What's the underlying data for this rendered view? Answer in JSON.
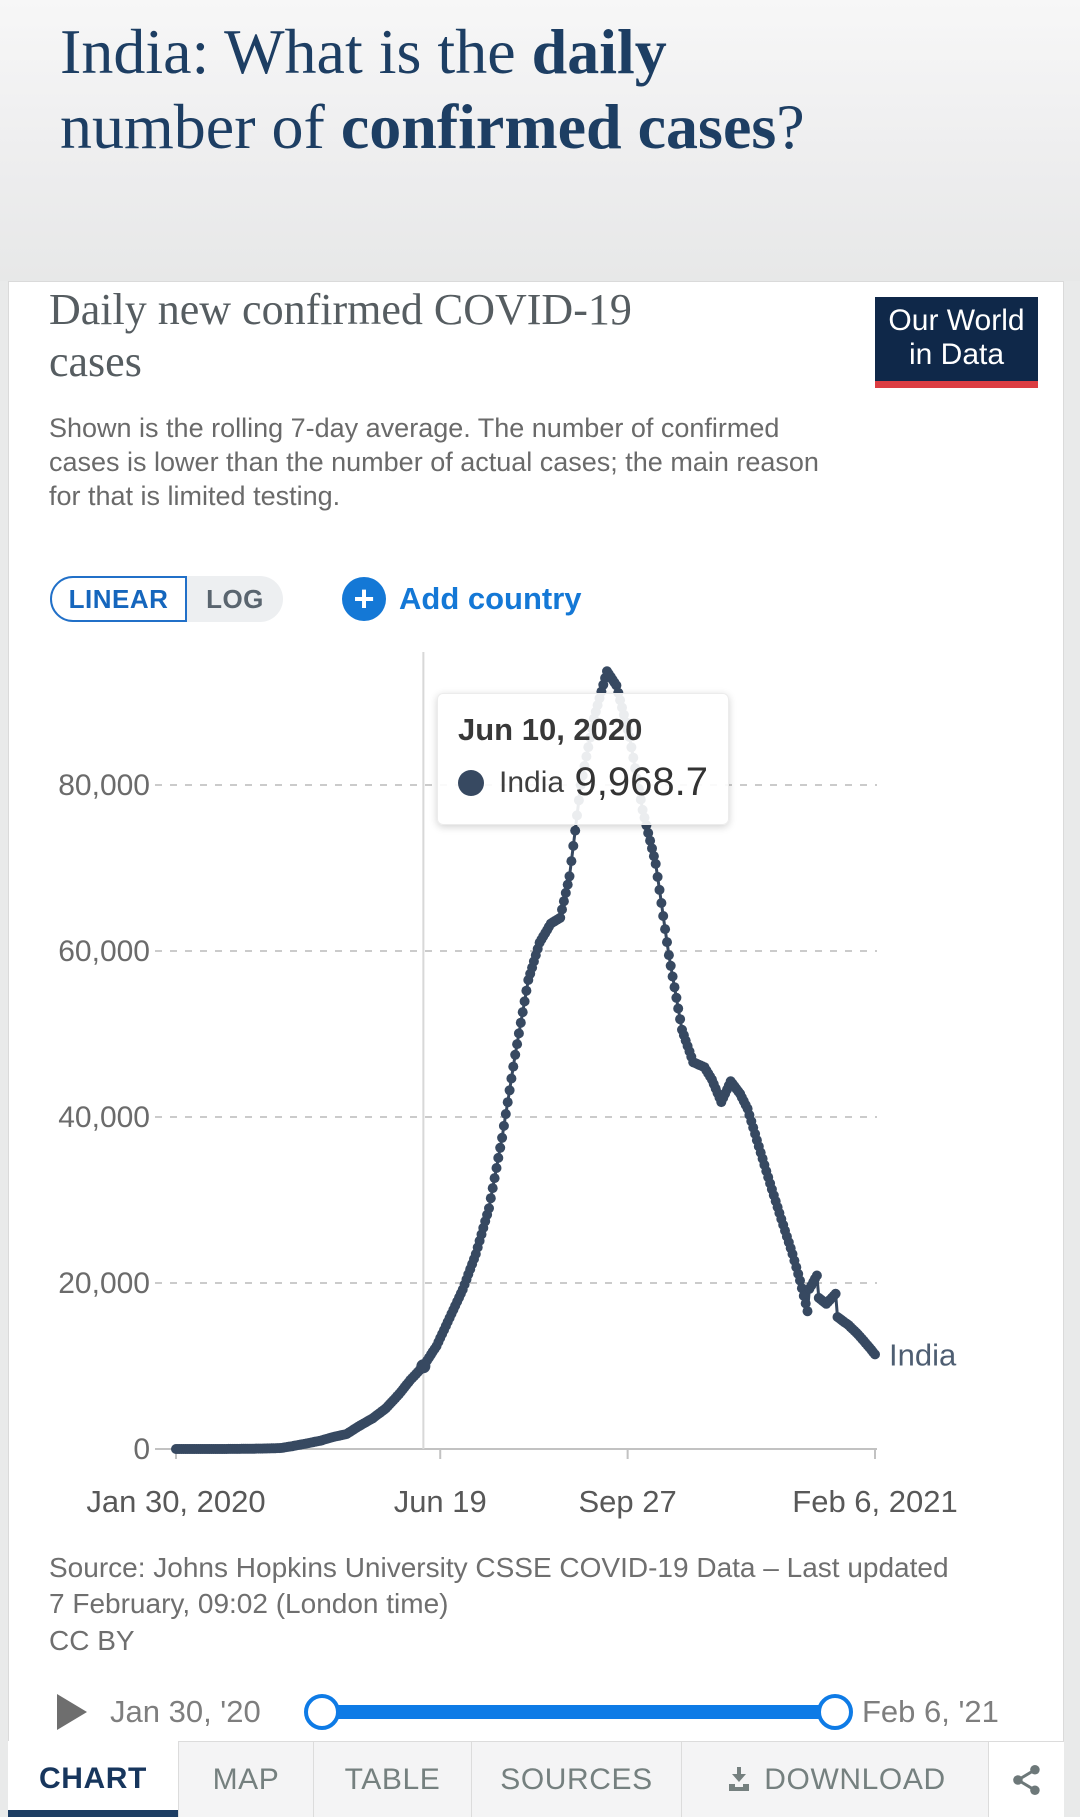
{
  "page_title": {
    "line1_normal": "India: What is the ",
    "line1_bold": "daily",
    "line2_normal": "number of ",
    "line2_bold": "confirmed cases",
    "line2_suffix": "?"
  },
  "chart_header": {
    "title_line1": "Daily new confirmed COVID-19",
    "title_line2": "cases",
    "logo_line1": "Our World",
    "logo_line2": "in Data",
    "subtitle_lines": [
      "Shown is the rolling 7-day average. The number of confirmed",
      "cases is lower than the number of actual cases; the main reason",
      "for that is limited testing."
    ]
  },
  "controls": {
    "linear_label": "LINEAR",
    "log_label": "LOG",
    "plus_glyph": "+",
    "add_country_label": "Add country"
  },
  "tooltip": {
    "date": "Jun 10, 2020",
    "series": "India",
    "value": "9,968.7"
  },
  "footer": {
    "source_line1": "Source: Johns Hopkins University CSSE COVID-19 Data – Last updated",
    "source_line2": "7 February, 09:02 (London time)",
    "license": "CC BY"
  },
  "timeline": {
    "start_label": "Jan 30, '20",
    "end_label": "Feb 6, '21"
  },
  "tabs": {
    "items": [
      {
        "label": "CHART",
        "active": true
      },
      {
        "label": "MAP",
        "active": false
      },
      {
        "label": "TABLE",
        "active": false
      },
      {
        "label": "SOURCES",
        "active": false
      },
      {
        "label": "DOWNLOAD",
        "active": false,
        "icon": "download-icon"
      }
    ],
    "share_icon": "share-icon"
  },
  "colors": {
    "accent_blue": "#1478d6",
    "slider_blue": "#0e7be6",
    "series_color": "#374961",
    "title_navy": "#1d3e63",
    "logo_navy": "#0f2849",
    "logo_red": "#dc3d42",
    "grid_gray": "#cbcbcb"
  },
  "chart_data": {
    "type": "line",
    "title": "Daily new confirmed COVID-19 cases",
    "entity": "India",
    "series_color": "#374961",
    "grid": true,
    "x_range": [
      "2020-01-30",
      "2021-02-06"
    ],
    "ylim": [
      0,
      95000
    ],
    "yticks": [
      {
        "v": 0,
        "label": "0"
      },
      {
        "v": 20000,
        "label": "20,000"
      },
      {
        "v": 40000,
        "label": "40,000"
      },
      {
        "v": 60000,
        "label": "60,000"
      },
      {
        "v": 80000,
        "label": "80,000"
      }
    ],
    "xticks": [
      {
        "date": "2020-01-30",
        "label": "Jan 30, 2020"
      },
      {
        "date": "2020-06-19",
        "label": "Jun 19"
      },
      {
        "date": "2020-09-27",
        "label": "Sep 27"
      },
      {
        "date": "2021-02-06",
        "label": "Feb 6, 2021"
      }
    ],
    "hover": {
      "date": "2020-06-10",
      "value": 9968.7
    },
    "end_label": "India",
    "points": [
      [
        "2020-01-30",
        0
      ],
      [
        "2020-02-25",
        3
      ],
      [
        "2020-03-08",
        25
      ],
      [
        "2020-03-18",
        60
      ],
      [
        "2020-03-26",
        120
      ],
      [
        "2020-04-02",
        380
      ],
      [
        "2020-04-09",
        680
      ],
      [
        "2020-04-16",
        1000
      ],
      [
        "2020-04-23",
        1450
      ],
      [
        "2020-04-30",
        1800
      ],
      [
        "2020-05-07",
        2800
      ],
      [
        "2020-05-14",
        3700
      ],
      [
        "2020-05-21",
        4900
      ],
      [
        "2020-05-28",
        6600
      ],
      [
        "2020-06-03",
        8300
      ],
      [
        "2020-06-10",
        9968.7
      ],
      [
        "2020-06-17",
        12400
      ],
      [
        "2020-06-24",
        15800
      ],
      [
        "2020-07-01",
        19200
      ],
      [
        "2020-07-08",
        23500
      ],
      [
        "2020-07-15",
        29000
      ],
      [
        "2020-07-22",
        37500
      ],
      [
        "2020-07-29",
        47500
      ],
      [
        "2020-08-05",
        56500
      ],
      [
        "2020-08-11",
        61000
      ],
      [
        "2020-08-17",
        63300
      ],
      [
        "2020-08-22",
        64000
      ],
      [
        "2020-08-27",
        69000
      ],
      [
        "2020-09-02",
        80000
      ],
      [
        "2020-09-09",
        88000
      ],
      [
        "2020-09-16",
        93700
      ],
      [
        "2020-09-21",
        92000
      ],
      [
        "2020-09-28",
        85800
      ],
      [
        "2020-10-05",
        77000
      ],
      [
        "2020-10-12",
        70500
      ],
      [
        "2020-10-19",
        59500
      ],
      [
        "2020-10-26",
        50500
      ],
      [
        "2020-11-01",
        46600
      ],
      [
        "2020-11-07",
        46000
      ],
      [
        "2020-11-11",
        44500
      ],
      [
        "2020-11-16",
        41800
      ],
      [
        "2020-11-21",
        44300
      ],
      [
        "2020-11-26",
        42800
      ],
      [
        "2020-11-30",
        41000
      ],
      [
        "2020-12-05",
        37200
      ],
      [
        "2020-12-12",
        32000
      ],
      [
        "2020-12-19",
        27000
      ],
      [
        "2020-12-24",
        23500
      ],
      [
        "2020-12-28",
        20300
      ],
      [
        "2021-01-01",
        16600
      ],
      [
        "2021-01-02",
        19300
      ],
      [
        "2021-01-06",
        20900
      ],
      [
        "2021-01-07",
        18200
      ],
      [
        "2021-01-11",
        17500
      ],
      [
        "2021-01-16",
        18700
      ],
      [
        "2021-01-17",
        15900
      ],
      [
        "2021-01-23",
        14900
      ],
      [
        "2021-01-28",
        13800
      ],
      [
        "2021-02-02",
        12500
      ],
      [
        "2021-02-06",
        11400
      ]
    ]
  }
}
